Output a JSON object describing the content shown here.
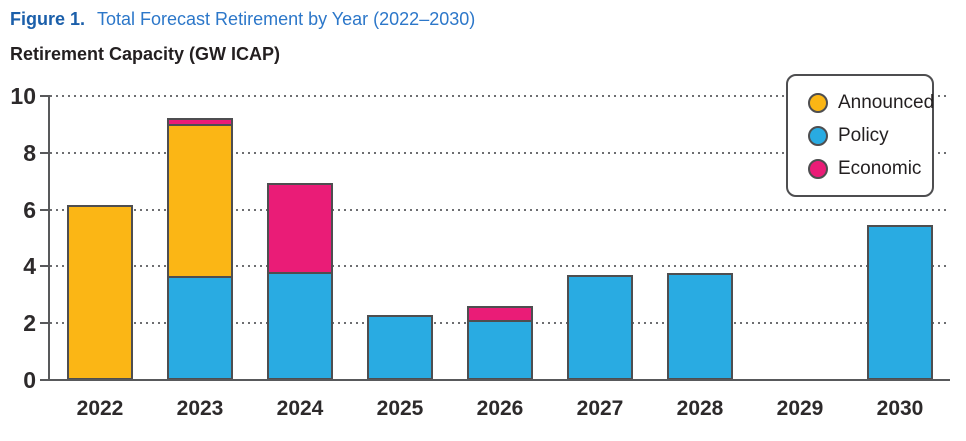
{
  "figure": {
    "label": "Figure 1.",
    "title": "Total Forecast Retirement by Year (2022–2030)",
    "axis_title": "Retirement Capacity (GW ICAP)"
  },
  "legend": {
    "position": "top-right",
    "items": [
      {
        "name": "announced",
        "label": "Announced",
        "color": "#FBB615"
      },
      {
        "name": "policy",
        "label": "Policy",
        "color": "#29ABE2"
      },
      {
        "name": "economic",
        "label": "Economic",
        "color": "#EA1C77"
      }
    ]
  },
  "chart_data": {
    "type": "bar",
    "stacked": true,
    "title": "Total Forecast Retirement by Year (2022–2030)",
    "ylabel": "Retirement Capacity (GW ICAP)",
    "xlabel": "",
    "categories": [
      "2022",
      "2023",
      "2024",
      "2025",
      "2026",
      "2027",
      "2028",
      "2029",
      "2030"
    ],
    "stack_order_bottom_to_top": [
      "Policy",
      "Announced",
      "Economic"
    ],
    "series": [
      {
        "name": "Policy",
        "color": "#29ABE2",
        "values": [
          0,
          3.65,
          3.8,
          2.3,
          2.1,
          3.7,
          3.75,
          0,
          5.45
        ]
      },
      {
        "name": "Announced",
        "color": "#FBB615",
        "values": [
          6.15,
          5.35,
          0,
          0,
          0,
          0,
          0,
          0,
          0
        ]
      },
      {
        "name": "Economic",
        "color": "#EA1C77",
        "values": [
          0,
          0.2,
          3.15,
          0,
          0.5,
          0,
          0,
          0,
          0
        ]
      }
    ],
    "totals": [
      6.15,
      9.2,
      6.95,
      2.3,
      2.6,
      3.7,
      3.75,
      0,
      5.45
    ],
    "ylim": [
      0,
      10
    ],
    "yticks": [
      0,
      2,
      4,
      6,
      8,
      10
    ],
    "grid": "dotted horizontal",
    "legend_position": "top-right"
  },
  "colors": {
    "figure_label": "#1B5FAA",
    "figure_title": "#2C77C9",
    "axis_line": "#58595B",
    "grid_dots": "#6D6E71",
    "bar_border": "#4E4E50",
    "text_dark": "#231F20"
  }
}
